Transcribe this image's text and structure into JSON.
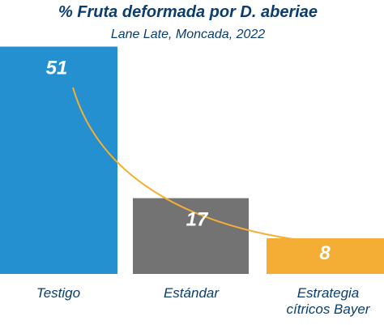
{
  "chart_data": {
    "type": "bar",
    "title": "% Fruta deformada por D. aberiae",
    "subtitle": "Lane Late, Moncada, 2022",
    "categories": [
      [
        "Testigo"
      ],
      [
        "Estándar"
      ],
      [
        "Estrategia",
        "cítricos Bayer"
      ]
    ],
    "values": [
      51,
      17,
      8
    ],
    "value_labels": [
      "51",
      "17",
      "8"
    ],
    "colors": [
      "#2490cf",
      "#737373",
      "#f5ae35"
    ],
    "trend_color": "#f5ae35",
    "title_color": "#0b3d6e",
    "ylim": [
      0,
      60
    ],
    "grid": false,
    "legend": "none"
  }
}
